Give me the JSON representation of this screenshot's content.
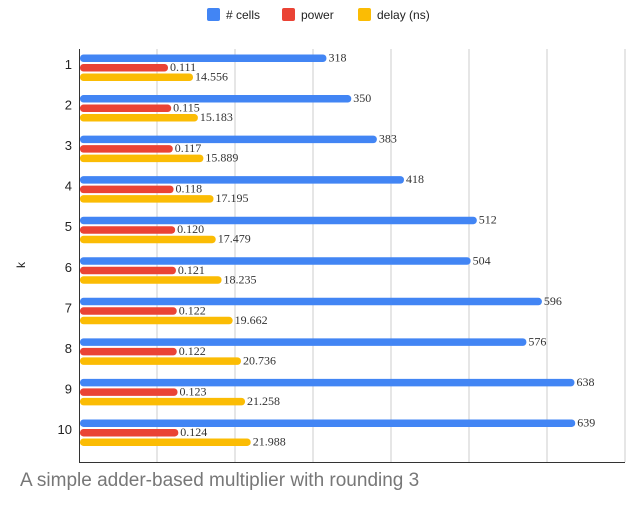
{
  "caption": "A simple adder-based multiplier with rounding 3",
  "chart_data": {
    "type": "bar",
    "orientation": "horizontal",
    "ylabel": "k",
    "categories": [
      "1",
      "2",
      "3",
      "4",
      "5",
      "6",
      "7",
      "8",
      "9",
      "10"
    ],
    "series": [
      {
        "name": "# cells",
        "color": "#4285f4",
        "values": [
          318,
          350,
          383,
          418,
          512,
          504,
          596,
          576,
          638,
          639
        ],
        "labels": [
          "318",
          "350",
          "383",
          "418",
          "512",
          "504",
          "596",
          "576",
          "638",
          "639"
        ]
      },
      {
        "name": "power",
        "color": "#ea4335",
        "values": [
          0.111,
          0.115,
          0.117,
          0.118,
          0.12,
          0.121,
          0.122,
          0.122,
          0.123,
          0.124
        ],
        "labels": [
          "0.111",
          "0.115",
          "0.117",
          "0.118",
          "0.120",
          "0.121",
          "0.122",
          "0.122",
          "0.123",
          "0.124"
        ]
      },
      {
        "name": "delay (ns)",
        "color": "#fbbc04",
        "values": [
          14.556,
          15.183,
          15.889,
          17.195,
          17.479,
          18.235,
          19.662,
          20.736,
          21.258,
          21.988
        ],
        "labels": [
          "14.556",
          "15.183",
          "15.889",
          "17.195",
          "17.479",
          "18.235",
          "19.662",
          "20.736",
          "21.258",
          "21.988"
        ]
      }
    ],
    "grid": true,
    "legend": "top"
  }
}
